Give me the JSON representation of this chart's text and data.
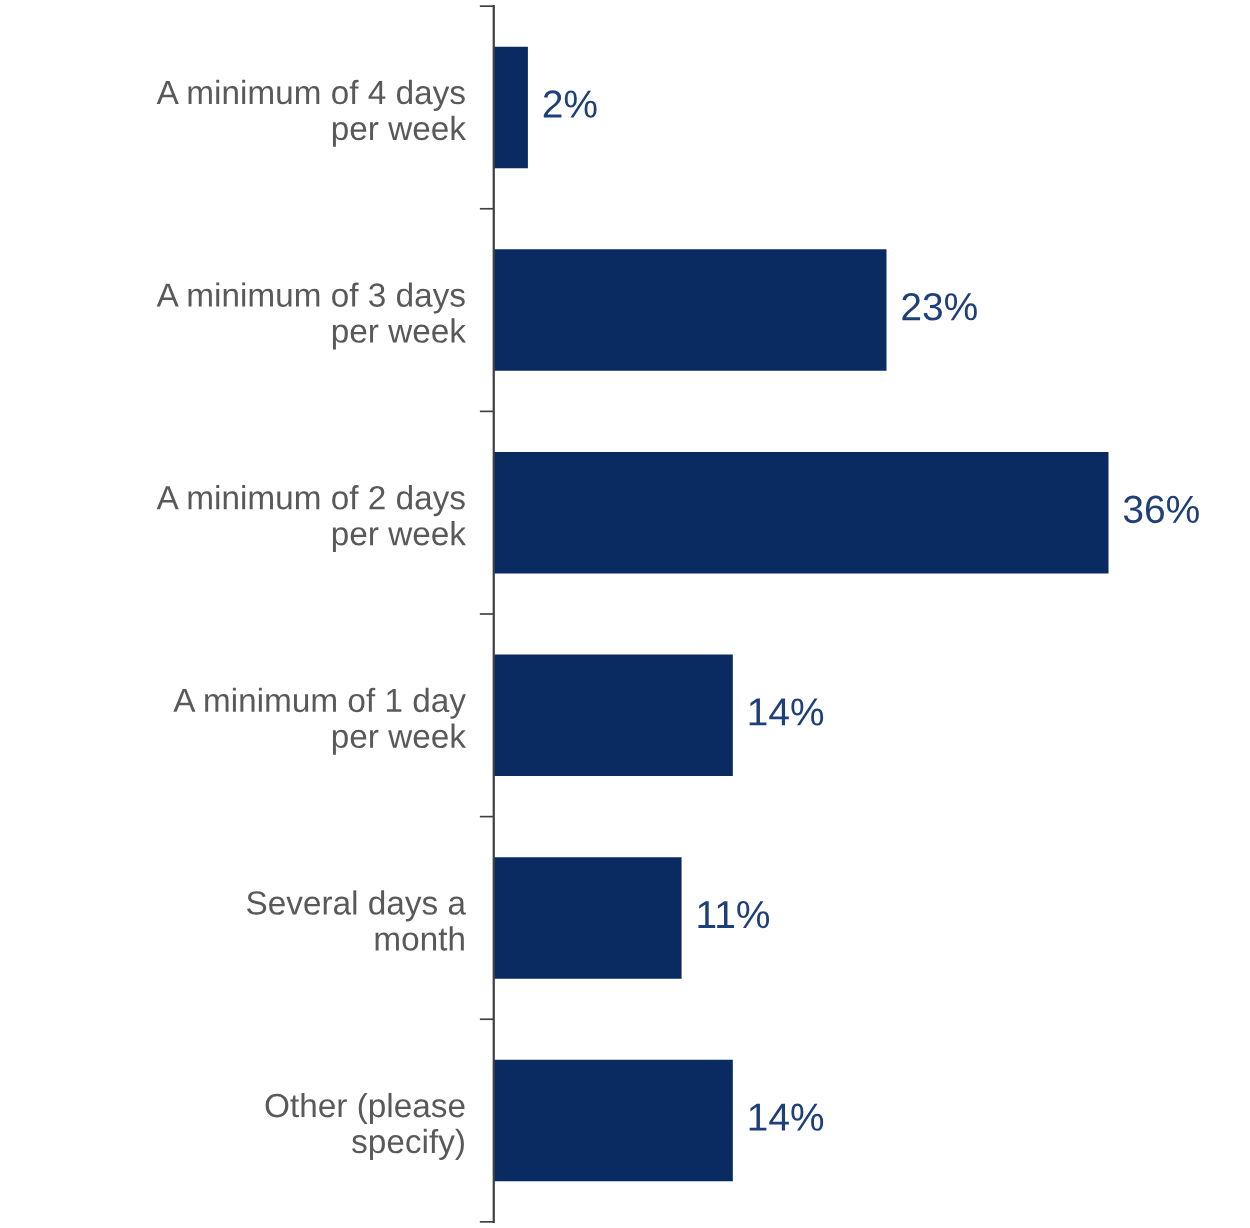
{
  "chart_data": {
    "type": "bar",
    "orientation": "horizontal",
    "categories": [
      "A minimum of 4 days\nper week",
      "A minimum of 3 days\nper week",
      "A minimum of 2 days\nper week",
      "A minimum of 1 day\nper week",
      "Several days a\nmonth",
      "Other (please\nspecify)"
    ],
    "values": [
      2,
      23,
      36,
      14,
      11,
      14
    ],
    "value_labels": [
      "2%",
      "23%",
      "36%",
      "14%",
      "11%",
      "14%"
    ],
    "color": "#0a2b62",
    "grid": false,
    "legend": false,
    "tick_labels": "y"
  }
}
